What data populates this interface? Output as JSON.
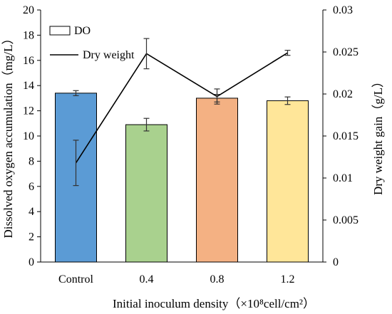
{
  "chart_data": {
    "type": "bar",
    "categories": [
      "Control",
      "0.4",
      "0.8",
      "1.2"
    ],
    "xlabel": "Initial inoculum density（×10⁸cell/cm²）",
    "ylabel": "Dissolved oxygen accumulation（mg/L）",
    "y2label": "Dry weight gain（g/L）",
    "ylim": [
      0,
      20
    ],
    "y2lim": [
      0,
      0.03
    ],
    "yticks": [
      "0",
      "2",
      "4",
      "6",
      "8",
      "10",
      "12",
      "14",
      "16",
      "18",
      "20"
    ],
    "y2ticks": [
      "0",
      "0.005",
      "0.01",
      "0.015",
      "0.02",
      "0.025",
      "0.03"
    ],
    "grid": false,
    "legend_position": "top-left",
    "bar_colors": [
      "#5b9bd5",
      "#a9d18e",
      "#f4b183",
      "#ffe699"
    ],
    "line_color": "#000000",
    "series": [
      {
        "name": "DO",
        "type": "bar",
        "axis": "left",
        "values": [
          13.4,
          10.9,
          13.0,
          12.8
        ],
        "errors": [
          0.2,
          0.5,
          0.3,
          0.3
        ]
      },
      {
        "name": "Dry weight",
        "type": "line",
        "axis": "right",
        "values": [
          0.0118,
          0.0248,
          0.0197,
          0.0249
        ],
        "errors": [
          0.0027,
          0.0018,
          0.0009,
          0.0003
        ]
      }
    ]
  }
}
